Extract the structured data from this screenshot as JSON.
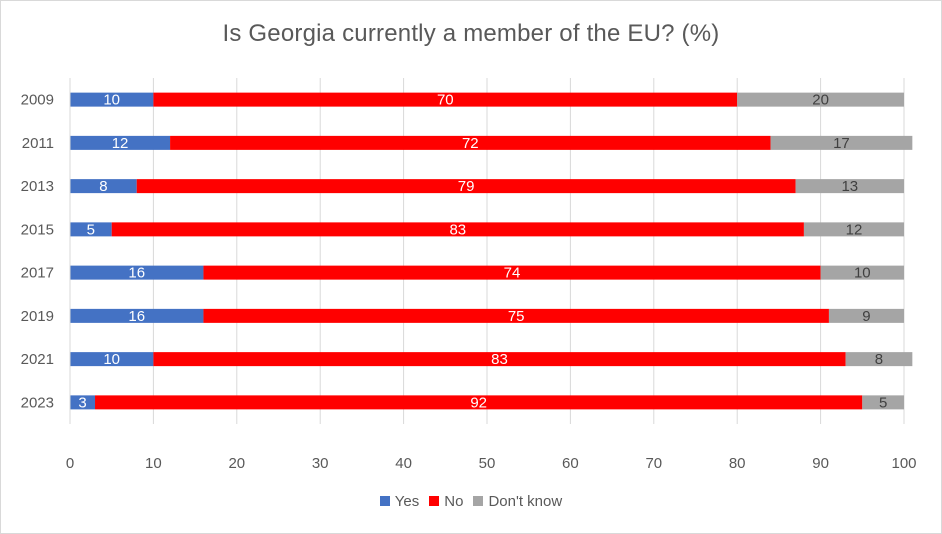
{
  "chart_data": {
    "type": "bar",
    "orientation": "horizontal",
    "stacked": true,
    "title": "Is Georgia currently a member of the EU? (%)",
    "xlabel": "",
    "ylabel": "",
    "categories": [
      "2009",
      "2011",
      "2013",
      "2015",
      "2017",
      "2019",
      "2021",
      "2023"
    ],
    "series": [
      {
        "name": "Yes",
        "color": "#4472c4",
        "label_color": "#ffffff",
        "values": [
          10,
          12,
          8,
          5,
          16,
          16,
          10,
          3
        ]
      },
      {
        "name": "No",
        "color": "#ff0000",
        "label_color": "#ffffff",
        "values": [
          70,
          72,
          79,
          83,
          74,
          75,
          83,
          92
        ]
      },
      {
        "name": "Don't know",
        "color": "#a5a5a5",
        "label_color": "#404040",
        "values": [
          20,
          17,
          13,
          12,
          10,
          9,
          8,
          5
        ]
      }
    ],
    "xlim": [
      0,
      100
    ],
    "xticks": [
      "0",
      "10",
      "20",
      "30",
      "40",
      "50",
      "60",
      "70",
      "80",
      "90",
      "100"
    ],
    "grid": true,
    "legend_position": "bottom"
  }
}
